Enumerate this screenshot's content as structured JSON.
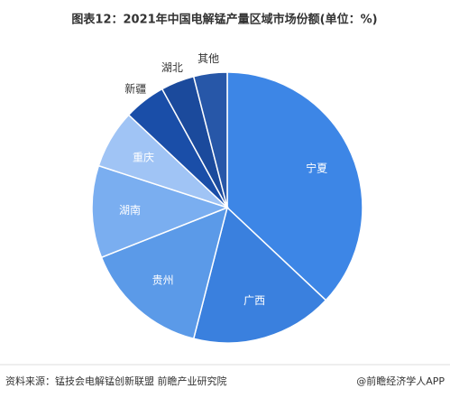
{
  "chart_data": {
    "type": "pie",
    "title": "图表12：2021年中国电解锰产量区域市场份额(单位：%)",
    "categories": [
      "宁夏",
      "广西",
      "贵州",
      "湖南",
      "重庆",
      "新疆",
      "湖北",
      "其他"
    ],
    "values": [
      37,
      17,
      15,
      11,
      7,
      5,
      4,
      4
    ],
    "colors": [
      "#3d86e6",
      "#3a80de",
      "#5b9ae8",
      "#7aaef0",
      "#a0c4f5",
      "#1a4ea8",
      "#1b4a9c",
      "#2757a8"
    ],
    "source": "资料来源：锰技会电解锰创新联盟 前瞻产业研究院",
    "credit": "@前瞻经济学人APP"
  }
}
